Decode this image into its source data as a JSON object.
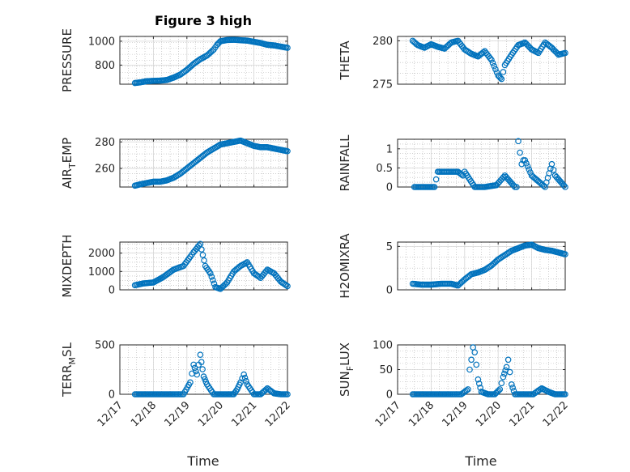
{
  "figure": {
    "title": "Figure 3 high",
    "xlabel": "Time",
    "marker_color": "#0072BD",
    "axis_color": "#262626",
    "grid_color": "#b0b0b0"
  },
  "chart_data": [
    {
      "type": "scatter",
      "ylabel": "PRESSURE",
      "xlim": [
        "12/17",
        "12/22"
      ],
      "ylim": [
        640,
        1040
      ],
      "yticks": [
        800,
        1000
      ],
      "xticks": [
        "12/17",
        "12/18",
        "12/19",
        "12/20",
        "12/21",
        "12/22"
      ],
      "grid": true,
      "x": [
        "12/17.45",
        "12/17.6",
        "12/17.8",
        "12/18.0",
        "12/18.2",
        "12/18.4",
        "12/18.6",
        "12/18.8",
        "12/19.0",
        "12/19.2",
        "12/19.4",
        "12/19.6",
        "12/19.8",
        "12/19.9",
        "12/20.0",
        "12/20.2",
        "12/20.4",
        "12/20.6",
        "12/20.8",
        "12/21.0",
        "12/21.2",
        "12/21.4",
        "12/21.6",
        "12/21.8",
        "12/22.0"
      ],
      "y": [
        650,
        655,
        665,
        668,
        670,
        675,
        695,
        720,
        760,
        810,
        850,
        880,
        930,
        970,
        1000,
        1010,
        1012,
        1008,
        1005,
        995,
        985,
        970,
        965,
        955,
        945
      ]
    },
    {
      "type": "scatter",
      "ylabel": "THETA",
      "xlim": [
        "12/17",
        "12/22"
      ],
      "ylim": [
        275,
        280.5
      ],
      "yticks": [
        275,
        280
      ],
      "xticks": [
        "12/17",
        "12/18",
        "12/19",
        "12/20",
        "12/21",
        "12/22"
      ],
      "grid": true,
      "x": [
        "12/17.45",
        "12/17.6",
        "12/17.8",
        "12/18.0",
        "12/18.2",
        "12/18.4",
        "12/18.6",
        "12/18.8",
        "12/19.0",
        "12/19.2",
        "12/19.4",
        "12/19.6",
        "12/19.8",
        "12/20.0",
        "12/20.1",
        "12/20.2",
        "12/20.4",
        "12/20.6",
        "12/20.8",
        "12/21.0",
        "12/21.2",
        "12/21.4",
        "12/21.6",
        "12/21.8",
        "12/22.0"
      ],
      "y": [
        280.0,
        279.5,
        279.2,
        279.6,
        279.3,
        279.1,
        279.8,
        280.0,
        279.0,
        278.5,
        278.2,
        278.8,
        277.8,
        276.0,
        275.6,
        277.2,
        278.4,
        279.5,
        279.8,
        279.0,
        278.6,
        279.8,
        279.2,
        278.4,
        278.6
      ]
    },
    {
      "type": "scatter",
      "ylabel": "AIR_TEMP",
      "xlim": [
        "12/17",
        "12/22"
      ],
      "ylim": [
        246,
        282
      ],
      "yticks": [
        260,
        280
      ],
      "xticks": [
        "12/17",
        "12/18",
        "12/19",
        "12/20",
        "12/21",
        "12/22"
      ],
      "grid": true,
      "x": [
        "12/17.45",
        "12/17.6",
        "12/17.8",
        "12/18.0",
        "12/18.2",
        "12/18.4",
        "12/18.6",
        "12/18.8",
        "12/19.0",
        "12/19.2",
        "12/19.4",
        "12/19.6",
        "12/19.8",
        "12/20.0",
        "12/20.2",
        "12/20.4",
        "12/20.6",
        "12/20.8",
        "12/21.0",
        "12/21.2",
        "12/21.4",
        "12/21.6",
        "12/21.8",
        "12/22.0"
      ],
      "y": [
        247,
        248,
        249,
        250,
        250,
        251,
        253,
        256,
        260,
        264,
        268,
        272,
        275,
        278,
        279,
        280,
        281,
        279,
        277,
        276,
        276,
        275,
        274,
        273
      ]
    },
    {
      "type": "scatter",
      "ylabel": "RAINFALL",
      "xlim": [
        "12/17",
        "12/22"
      ],
      "ylim": [
        0,
        1.25
      ],
      "yticks": [
        0,
        0.5,
        1
      ],
      "xticks": [
        "12/17",
        "12/18",
        "12/19",
        "12/20",
        "12/21",
        "12/22"
      ],
      "grid": true,
      "x": [
        "12/17.5",
        "12/17.8",
        "12/18.1",
        "12/18.2",
        "12/18.5",
        "12/18.8",
        "12/18.95",
        "12/19.0",
        "12/19.3",
        "12/19.6",
        "12/19.95",
        "12/20.2",
        "12/20.5",
        "12/20.55",
        "12/20.6",
        "12/20.7",
        "12/20.75",
        "12/20.8",
        "12/21.0",
        "12/21.4",
        "12/21.6",
        "12/21.7",
        "12/22.0"
      ],
      "y": [
        0,
        0,
        0,
        0.4,
        0.4,
        0.4,
        0.3,
        0.4,
        0,
        0,
        0.05,
        0.3,
        0,
        0,
        1.2,
        0.6,
        0.7,
        0.7,
        0.3,
        0,
        0.6,
        0.3,
        0
      ]
    },
    {
      "type": "scatter",
      "ylabel": "MIXDEPTH",
      "xlim": [
        "12/17",
        "12/22"
      ],
      "ylim": [
        0,
        2600
      ],
      "yticks": [
        0,
        1000,
        2000
      ],
      "xticks": [
        "12/17",
        "12/18",
        "12/19",
        "12/20",
        "12/21",
        "12/22"
      ],
      "grid": true,
      "x": [
        "12/17.45",
        "12/17.7",
        "12/18.0",
        "12/18.3",
        "12/18.6",
        "12/18.9",
        "12/19.1",
        "12/19.2",
        "12/19.4",
        "12/19.55",
        "12/19.7",
        "12/19.85",
        "12/20.0",
        "12/20.2",
        "12/20.4",
        "12/20.6",
        "12/20.8",
        "12/21.0",
        "12/21.2",
        "12/21.4",
        "12/21.6",
        "12/21.8",
        "12/22.0"
      ],
      "y": [
        250,
        350,
        400,
        700,
        1100,
        1300,
        1800,
        2050,
        2500,
        1300,
        900,
        150,
        50,
        400,
        1000,
        1300,
        1500,
        900,
        650,
        1100,
        900,
        450,
        200
      ]
    },
    {
      "type": "scatter",
      "ylabel": "H2OMIXRA",
      "xlim": [
        "12/17",
        "12/22"
      ],
      "ylim": [
        0,
        5.5
      ],
      "yticks": [
        0,
        5
      ],
      "xticks": [
        "12/17",
        "12/18",
        "12/19",
        "12/20",
        "12/21",
        "12/22"
      ],
      "grid": true,
      "x": [
        "12/17.45",
        "12/17.7",
        "12/18.0",
        "12/18.3",
        "12/18.6",
        "12/18.8",
        "12/19.0",
        "12/19.2",
        "12/19.4",
        "12/19.6",
        "12/19.8",
        "12/20.0",
        "12/20.2",
        "12/20.4",
        "12/20.6",
        "12/20.8",
        "12/21.0",
        "12/21.2",
        "12/21.4",
        "12/21.6",
        "12/21.8",
        "12/22.0"
      ],
      "y": [
        0.7,
        0.6,
        0.6,
        0.7,
        0.7,
        0.5,
        1.2,
        1.8,
        2.0,
        2.3,
        2.8,
        3.5,
        4.0,
        4.5,
        4.8,
        5.1,
        5.2,
        4.8,
        4.6,
        4.5,
        4.3,
        4.1
      ]
    },
    {
      "type": "scatter",
      "ylabel": "TERR_MSL",
      "xlim": [
        "12/17",
        "12/22"
      ],
      "ylim": [
        0,
        500
      ],
      "yticks": [
        0,
        500
      ],
      "xticks": [
        "12/17",
        "12/18",
        "12/19",
        "12/20",
        "12/21",
        "12/22"
      ],
      "grid": true,
      "x": [
        "12/17.45",
        "12/17.8",
        "12/18.2",
        "12/18.6",
        "12/18.9",
        "12/19.1",
        "12/19.2",
        "12/19.3",
        "12/19.4",
        "12/19.5",
        "12/19.6",
        "12/19.8",
        "12/20.0",
        "12/20.2",
        "12/20.4",
        "12/20.5",
        "12/20.6",
        "12/20.7",
        "12/20.8",
        "12/21.0",
        "12/21.2",
        "12/21.4",
        "12/21.6",
        "12/21.8",
        "12/22.0"
      ],
      "y": [
        0,
        0,
        0,
        0,
        0,
        120,
        300,
        200,
        400,
        180,
        100,
        0,
        0,
        0,
        0,
        50,
        120,
        200,
        100,
        0,
        0,
        60,
        10,
        0,
        0
      ]
    },
    {
      "type": "scatter",
      "ylabel": "SUN_FLUX",
      "xlim": [
        "12/17",
        "12/22"
      ],
      "ylim": [
        0,
        100
      ],
      "yticks": [
        0,
        50,
        100
      ],
      "xticks": [
        "12/17",
        "12/18",
        "12/19",
        "12/20",
        "12/21",
        "12/22"
      ],
      "grid": true,
      "x": [
        "12/17.45",
        "12/17.8",
        "12/18.2",
        "12/18.6",
        "12/18.9",
        "12/19.1",
        "12/19.15",
        "12/19.2",
        "12/19.25",
        "12/19.3",
        "12/19.35",
        "12/19.4",
        "12/19.5",
        "12/19.7",
        "12/19.9",
        "12/20.05",
        "12/20.15",
        "12/20.25",
        "12/20.3",
        "12/20.35",
        "12/20.4",
        "12/20.5",
        "12/20.7",
        "12/20.9",
        "12/21.05",
        "12/21.15",
        "12/21.3",
        "12/21.5",
        "12/21.7",
        "12/22.0"
      ],
      "y": [
        0,
        0,
        0,
        0,
        0,
        10,
        50,
        70,
        95,
        85,
        60,
        30,
        5,
        0,
        0,
        10,
        35,
        55,
        70,
        45,
        20,
        0,
        0,
        0,
        0,
        5,
        12,
        5,
        0,
        0
      ]
    }
  ]
}
